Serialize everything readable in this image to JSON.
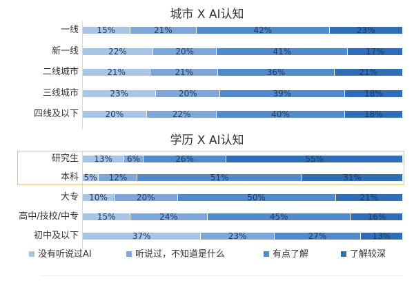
{
  "chart_data": [
    {
      "type": "bar",
      "orientation": "horizontal",
      "stacked": true,
      "normalized": true,
      "title": "城市 X AI认知",
      "categories": [
        "一线",
        "新一线",
        "二线城市",
        "三线城市",
        "四线及以下"
      ],
      "series": [
        {
          "name": "没有听说过AI",
          "values": [
            15,
            22,
            21,
            23,
            20
          ]
        },
        {
          "name": "听说过，不知道是什么",
          "values": [
            21,
            20,
            21,
            20,
            22
          ]
        },
        {
          "name": "有点了解",
          "values": [
            42,
            41,
            36,
            39,
            40
          ]
        },
        {
          "name": "了解较深",
          "values": [
            23,
            17,
            21,
            18,
            18
          ]
        }
      ],
      "value_labels_suffix": "%",
      "xlabel": "",
      "ylabel": "",
      "grid": false,
      "legend_position": "bottom"
    },
    {
      "type": "bar",
      "orientation": "horizontal",
      "stacked": true,
      "normalized": true,
      "title": "学历 X AI认知",
      "categories": [
        "研究生",
        "本科",
        "大专",
        "高中/技校/中专",
        "初中及以下"
      ],
      "series": [
        {
          "name": "没有听说过AI",
          "values": [
            13,
            5,
            10,
            15,
            37
          ]
        },
        {
          "name": "听说过，不知道是什么",
          "values": [
            6,
            12,
            20,
            24,
            23
          ]
        },
        {
          "name": "有点了解",
          "values": [
            26,
            51,
            50,
            45,
            27
          ]
        },
        {
          "name": "了解较深",
          "values": [
            55,
            31,
            21,
            16,
            13
          ]
        }
      ],
      "value_labels_suffix": "%",
      "highlighted_categories": [
        "研究生",
        "本科"
      ],
      "xlabel": "",
      "ylabel": "",
      "grid": false,
      "legend_position": "bottom"
    }
  ],
  "colors": {
    "series": [
      "#a9c4e4",
      "#7ea6d8",
      "#5289c8",
      "#2f6db5"
    ],
    "highlight_border": "#e3c27a",
    "label_text": "#1f3a60"
  },
  "city": {
    "title": "城市 X AI认知",
    "rows": [
      {
        "label": "一线",
        "segs": [
          {
            "v": 15,
            "t": "15%"
          },
          {
            "v": 21,
            "t": "21%"
          },
          {
            "v": 42,
            "t": "42%"
          },
          {
            "v": 23,
            "t": "23%"
          }
        ]
      },
      {
        "label": "新一线",
        "segs": [
          {
            "v": 22,
            "t": "22%"
          },
          {
            "v": 20,
            "t": "20%"
          },
          {
            "v": 41,
            "t": "41%"
          },
          {
            "v": 17,
            "t": "17%"
          }
        ]
      },
      {
        "label": "二线城市",
        "segs": [
          {
            "v": 21,
            "t": "21%"
          },
          {
            "v": 21,
            "t": "21%"
          },
          {
            "v": 36,
            "t": "36%"
          },
          {
            "v": 21,
            "t": "21%"
          }
        ]
      },
      {
        "label": "三线城市",
        "segs": [
          {
            "v": 23,
            "t": "23%"
          },
          {
            "v": 20,
            "t": "20%"
          },
          {
            "v": 39,
            "t": "39%"
          },
          {
            "v": 18,
            "t": "18%"
          }
        ]
      },
      {
        "label": "四线及以下",
        "segs": [
          {
            "v": 20,
            "t": "20%"
          },
          {
            "v": 22,
            "t": "22%"
          },
          {
            "v": 40,
            "t": "40%"
          },
          {
            "v": 18,
            "t": "18%"
          }
        ]
      }
    ]
  },
  "edu": {
    "title": "学历 X AI认知",
    "rows": [
      {
        "label": "研究生",
        "segs": [
          {
            "v": 13,
            "t": "13%"
          },
          {
            "v": 6,
            "t": "6%"
          },
          {
            "v": 26,
            "t": "26%"
          },
          {
            "v": 55,
            "t": "55%"
          }
        ]
      },
      {
        "label": "本科",
        "segs": [
          {
            "v": 5,
            "t": "5%"
          },
          {
            "v": 12,
            "t": "12%"
          },
          {
            "v": 51,
            "t": "51%"
          },
          {
            "v": 31,
            "t": "31%"
          }
        ]
      },
      {
        "label": "大专",
        "segs": [
          {
            "v": 10,
            "t": "10%"
          },
          {
            "v": 20,
            "t": "20%"
          },
          {
            "v": 50,
            "t": "50%"
          },
          {
            "v": 21,
            "t": "21%"
          }
        ]
      },
      {
        "label": "高中/技校/中专",
        "segs": [
          {
            "v": 15,
            "t": "15%"
          },
          {
            "v": 24,
            "t": "24%"
          },
          {
            "v": 45,
            "t": "45%"
          },
          {
            "v": 16,
            "t": "16%"
          }
        ]
      },
      {
        "label": "初中及以下",
        "segs": [
          {
            "v": 37,
            "t": "37%"
          },
          {
            "v": 23,
            "t": "23%"
          },
          {
            "v": 27,
            "t": "27%"
          },
          {
            "v": 13,
            "t": "13%"
          }
        ]
      }
    ]
  },
  "legend": [
    {
      "label": "没有听说过AI"
    },
    {
      "label": "听说过，不知道是什么"
    },
    {
      "label": "有点了解"
    },
    {
      "label": "了解较深"
    }
  ]
}
